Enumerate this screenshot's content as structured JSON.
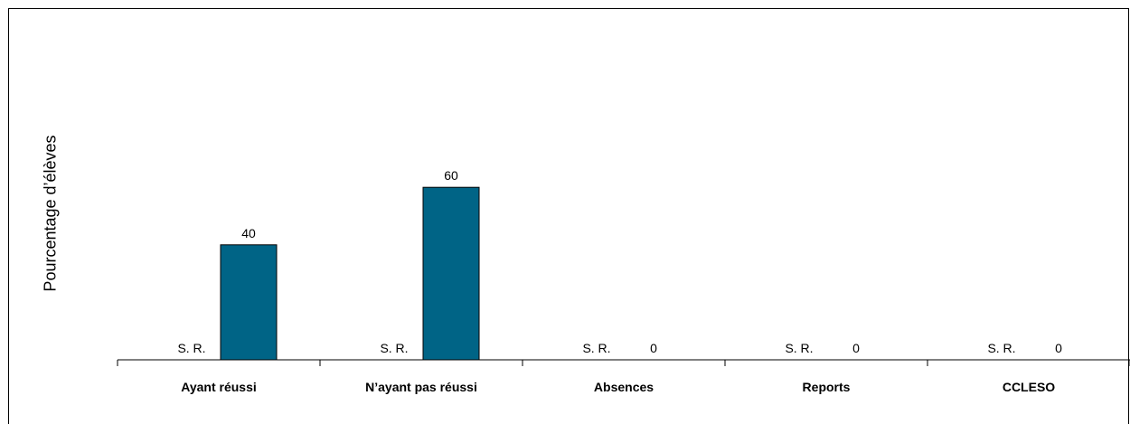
{
  "chart_data": {
    "type": "bar",
    "title": "",
    "xlabel": "",
    "ylabel": "Pourcentage d’élèves",
    "categories": [
      "Ayant réussi",
      "N’ayant pas réussi",
      "Absences",
      "Reports",
      "CCLESO"
    ],
    "series": [
      {
        "values": [
          "S. R.",
          "S. R.",
          "S. R.",
          "S. R.",
          "S. R."
        ]
      },
      {
        "values": [
          40,
          60,
          0,
          0,
          0
        ],
        "color": "#006486"
      }
    ],
    "ylim": [
      0,
      100
    ],
    "grid": false,
    "legend": "none"
  }
}
